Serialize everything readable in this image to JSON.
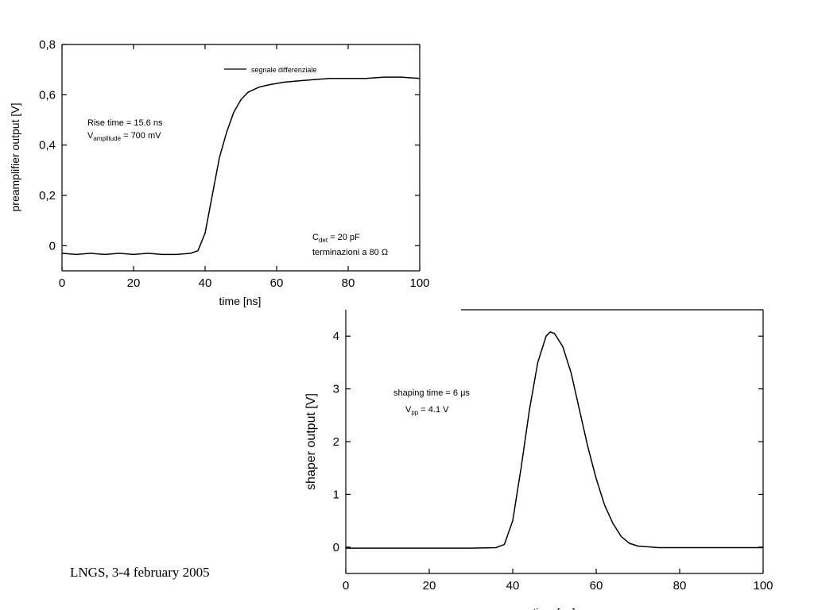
{
  "chart_data": [
    {
      "type": "line",
      "x_label": "time [ns]",
      "y_label": "preamplifier output [V]",
      "xlim": [
        0,
        100
      ],
      "xticks": [
        0,
        20,
        40,
        60,
        80,
        100
      ],
      "ylim": [
        -0.1,
        0.8
      ],
      "yticks": [
        0,
        {
          "value": 0.2,
          "label": "0,2"
        },
        {
          "value": 0.4,
          "label": "0,4"
        },
        {
          "value": 0.6,
          "label": "0,6"
        },
        {
          "value": 0.8,
          "label": "0,8"
        }
      ],
      "legend": "top-right",
      "x": [
        0,
        4,
        8,
        12,
        16,
        20,
        24,
        28,
        32,
        36,
        38,
        40,
        42,
        44,
        46,
        48,
        50,
        52,
        55,
        58,
        62,
        66,
        70,
        75,
        80,
        85,
        90,
        95,
        100
      ],
      "series": [
        {
          "name": "segnale differenziale",
          "color": "#000000",
          "values": [
            -0.03,
            -0.035,
            -0.03,
            -0.035,
            -0.03,
            -0.035,
            -0.03,
            -0.035,
            -0.035,
            -0.03,
            -0.02,
            0.05,
            0.2,
            0.35,
            0.45,
            0.53,
            0.58,
            0.61,
            0.63,
            0.64,
            0.65,
            0.655,
            0.66,
            0.665,
            0.665,
            0.665,
            0.67,
            0.67,
            0.665
          ]
        }
      ],
      "annotations": [
        {
          "text": "Rise time = 15.6 ns"
        },
        {
          "text": "V",
          "sub": "amplitude",
          "tail": " = 700 mV"
        },
        {
          "text": "C",
          "sub": "det",
          "tail": " = 20 pF"
        },
        {
          "text": "terminazioni a 80 Ω"
        }
      ]
    },
    {
      "type": "line",
      "x_label": "time [μs]",
      "y_label": "shaper output [V]",
      "xlim": [
        0,
        100
      ],
      "xticks": [
        0,
        20,
        40,
        60,
        80,
        100
      ],
      "ylim": [
        -0.5,
        4.5
      ],
      "yticks": [
        0,
        1,
        2,
        3,
        4
      ],
      "x": [
        0,
        10,
        20,
        30,
        36,
        38,
        40,
        42,
        44,
        46,
        48,
        49,
        50,
        52,
        54,
        56,
        58,
        60,
        62,
        64,
        66,
        68,
        70,
        75,
        80,
        90,
        100
      ],
      "series": [
        {
          "color": "#000000",
          "values": [
            -0.02,
            -0.02,
            -0.02,
            -0.02,
            -0.01,
            0.05,
            0.5,
            1.5,
            2.6,
            3.5,
            4.0,
            4.08,
            4.05,
            3.8,
            3.3,
            2.6,
            1.9,
            1.3,
            0.8,
            0.45,
            0.2,
            0.07,
            0.02,
            -0.01,
            -0.01,
            -0.01,
            -0.01
          ]
        }
      ],
      "annotations": [
        {
          "text": "shaping time = 6 μs"
        },
        {
          "text": "V",
          "sub": "pp",
          "tail": " = 4.1 V"
        }
      ]
    }
  ],
  "footer": "LNGS, 3-4 february 2005"
}
